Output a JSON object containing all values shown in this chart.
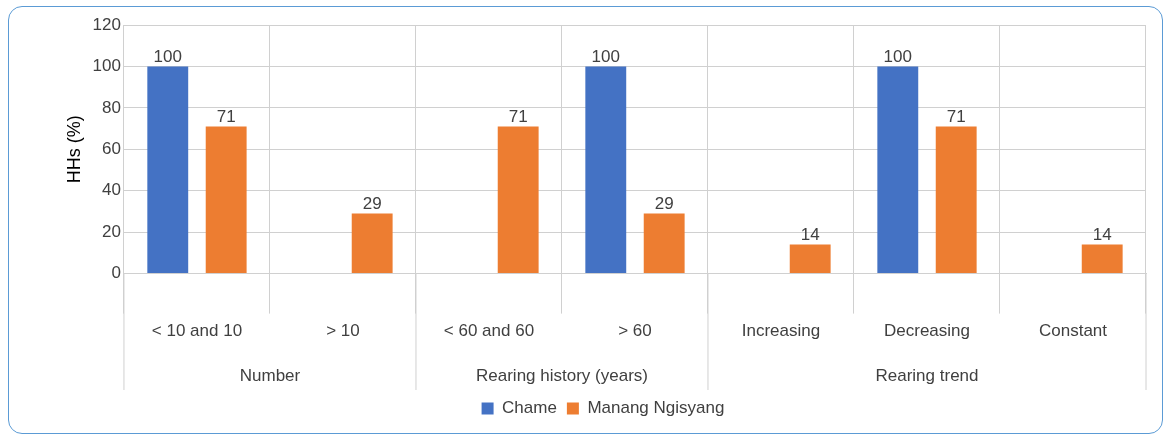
{
  "chart_data": {
    "type": "bar",
    "ylabel": "HHs (%)",
    "categories": [
      "< 10 and 10",
      "> 10",
      "< 60 and 60",
      "> 60",
      "Increasing",
      "Decreasing",
      "Constant"
    ],
    "series": [
      {
        "name": "Chame",
        "color": "#4472c4",
        "values": [
          100,
          null,
          null,
          100,
          null,
          100,
          null
        ]
      },
      {
        "name": "Manang Ngisyang",
        "color": "#ed7d31",
        "values": [
          71,
          29,
          71,
          29,
          14,
          71,
          14
        ]
      }
    ],
    "ylim": [
      0,
      120
    ],
    "yticks": [
      0,
      20,
      40,
      60,
      80,
      100,
      120
    ],
    "grid": true,
    "legend": "bottom",
    "data_labels": true,
    "annotations": [
      "Number",
      "Rearing history (years)",
      "Rearing trend"
    ]
  }
}
